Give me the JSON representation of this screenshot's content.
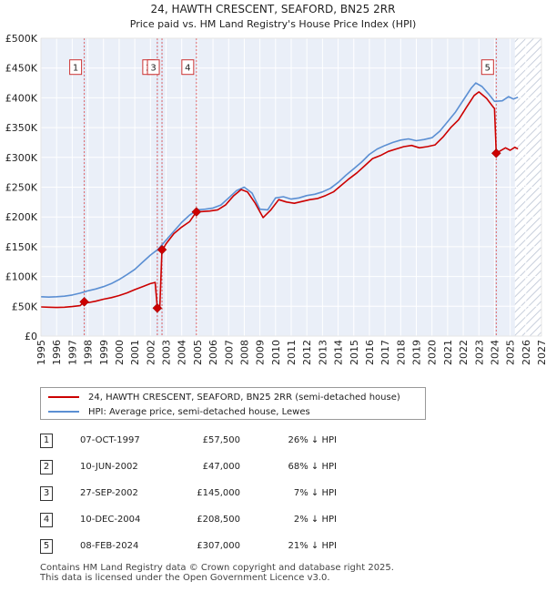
{
  "chart_data": {
    "type": "line",
    "title": "24, HAWTH CRESCENT, SEAFORD, BN25 2RR",
    "subtitle": "Price paid vs. HM Land Registry's House Price Index (HPI)",
    "xlim": [
      1995,
      2027
    ],
    "ylim": [
      0,
      500000
    ],
    "x_ticks": [
      1995,
      1996,
      1997,
      1998,
      1999,
      2000,
      2001,
      2002,
      2003,
      2004,
      2005,
      2006,
      2007,
      2008,
      2009,
      2010,
      2011,
      2012,
      2013,
      2014,
      2015,
      2016,
      2017,
      2018,
      2019,
      2020,
      2021,
      2022,
      2023,
      2024,
      2025,
      2026,
      2027
    ],
    "y_ticks": [
      {
        "value": 0,
        "label": "£0"
      },
      {
        "value": 50000,
        "label": "£50K"
      },
      {
        "value": 100000,
        "label": "£100K"
      },
      {
        "value": 150000,
        "label": "£150K"
      },
      {
        "value": 200000,
        "label": "£200K"
      },
      {
        "value": 250000,
        "label": "£250K"
      },
      {
        "value": 300000,
        "label": "£300K"
      },
      {
        "value": 350000,
        "label": "£350K"
      },
      {
        "value": 400000,
        "label": "£400K"
      },
      {
        "value": 450000,
        "label": "£450K"
      },
      {
        "value": 500000,
        "label": "£500K"
      }
    ],
    "forecast_start": 2025.3,
    "series": [
      {
        "name": "24, HAWTH CRESCENT, SEAFORD, BN25 2RR (semi-detached house)",
        "color": "#cc0000",
        "points": [
          [
            1995.0,
            49000
          ],
          [
            1995.5,
            48500
          ],
          [
            1996.0,
            48000
          ],
          [
            1996.5,
            48500
          ],
          [
            1997.0,
            49500
          ],
          [
            1997.5,
            51000
          ],
          [
            1997.77,
            57500
          ],
          [
            1998.0,
            56000
          ],
          [
            1998.5,
            58500
          ],
          [
            1999.0,
            62000
          ],
          [
            1999.5,
            64500
          ],
          [
            2000.0,
            68000
          ],
          [
            2000.5,
            72500
          ],
          [
            2001.0,
            78000
          ],
          [
            2001.5,
            83000
          ],
          [
            2002.0,
            88000
          ],
          [
            2002.3,
            90000
          ],
          [
            2002.44,
            47000
          ],
          [
            2002.6,
            47500
          ],
          [
            2002.74,
            145000
          ],
          [
            2002.8,
            146000
          ],
          [
            2003.0,
            155000
          ],
          [
            2003.5,
            172000
          ],
          [
            2004.0,
            183000
          ],
          [
            2004.5,
            192000
          ],
          [
            2004.94,
            208500
          ],
          [
            2005.3,
            209000
          ],
          [
            2005.8,
            210000
          ],
          [
            2006.3,
            212000
          ],
          [
            2006.8,
            220000
          ],
          [
            2007.3,
            235000
          ],
          [
            2007.8,
            246000
          ],
          [
            2008.2,
            242000
          ],
          [
            2008.7,
            223000
          ],
          [
            2009.2,
            199000
          ],
          [
            2009.7,
            212000
          ],
          [
            2010.2,
            229000
          ],
          [
            2010.7,
            225000
          ],
          [
            2011.2,
            223000
          ],
          [
            2011.7,
            226000
          ],
          [
            2012.2,
            229000
          ],
          [
            2012.7,
            231000
          ],
          [
            2013.2,
            236000
          ],
          [
            2013.7,
            242000
          ],
          [
            2014.2,
            253000
          ],
          [
            2014.7,
            264000
          ],
          [
            2015.2,
            274000
          ],
          [
            2015.7,
            286000
          ],
          [
            2016.2,
            298000
          ],
          [
            2016.7,
            303000
          ],
          [
            2017.2,
            310000
          ],
          [
            2017.7,
            314000
          ],
          [
            2018.2,
            318000
          ],
          [
            2018.7,
            320000
          ],
          [
            2019.2,
            316000
          ],
          [
            2019.7,
            318000
          ],
          [
            2020.2,
            321000
          ],
          [
            2020.7,
            334000
          ],
          [
            2021.2,
            350000
          ],
          [
            2021.7,
            363000
          ],
          [
            2022.2,
            384000
          ],
          [
            2022.7,
            404000
          ],
          [
            2023.0,
            410000
          ],
          [
            2023.5,
            399000
          ],
          [
            2023.9,
            385000
          ],
          [
            2024.0,
            382000
          ],
          [
            2024.11,
            307000
          ],
          [
            2024.3,
            310000
          ],
          [
            2024.7,
            316000
          ],
          [
            2025.0,
            312000
          ],
          [
            2025.3,
            317000
          ],
          [
            2025.5,
            314000
          ]
        ]
      },
      {
        "name": "HPI: Average price, semi-detached house, Lewes",
        "color": "#5b8fd3",
        "points": [
          [
            1995.0,
            66000
          ],
          [
            1995.5,
            65500
          ],
          [
            1996.0,
            66000
          ],
          [
            1996.5,
            67000
          ],
          [
            1997.0,
            69000
          ],
          [
            1997.5,
            72000
          ],
          [
            1998.0,
            76000
          ],
          [
            1998.5,
            79000
          ],
          [
            1999.0,
            83000
          ],
          [
            1999.5,
            88000
          ],
          [
            2000.0,
            95000
          ],
          [
            2000.5,
            103000
          ],
          [
            2001.0,
            112000
          ],
          [
            2001.5,
            124000
          ],
          [
            2002.0,
            136000
          ],
          [
            2002.5,
            146000
          ],
          [
            2003.0,
            161000
          ],
          [
            2003.5,
            176000
          ],
          [
            2004.0,
            191000
          ],
          [
            2004.5,
            203000
          ],
          [
            2005.0,
            212000
          ],
          [
            2005.5,
            213000
          ],
          [
            2006.0,
            215000
          ],
          [
            2006.5,
            220000
          ],
          [
            2007.0,
            232000
          ],
          [
            2007.5,
            244000
          ],
          [
            2008.0,
            250000
          ],
          [
            2008.5,
            240000
          ],
          [
            2009.0,
            213000
          ],
          [
            2009.5,
            212000
          ],
          [
            2010.0,
            232000
          ],
          [
            2010.5,
            234000
          ],
          [
            2011.0,
            230000
          ],
          [
            2011.5,
            232000
          ],
          [
            2012.0,
            236000
          ],
          [
            2012.5,
            238000
          ],
          [
            2013.0,
            242000
          ],
          [
            2013.5,
            248000
          ],
          [
            2014.0,
            258000
          ],
          [
            2014.5,
            270000
          ],
          [
            2015.0,
            281000
          ],
          [
            2015.5,
            292000
          ],
          [
            2016.0,
            305000
          ],
          [
            2016.5,
            314000
          ],
          [
            2017.0,
            320000
          ],
          [
            2017.5,
            325000
          ],
          [
            2018.0,
            329000
          ],
          [
            2018.5,
            331000
          ],
          [
            2019.0,
            328000
          ],
          [
            2019.5,
            330000
          ],
          [
            2020.0,
            333000
          ],
          [
            2020.5,
            344000
          ],
          [
            2021.0,
            360000
          ],
          [
            2021.5,
            376000
          ],
          [
            2022.0,
            396000
          ],
          [
            2022.5,
            416000
          ],
          [
            2022.8,
            425000
          ],
          [
            2023.2,
            419000
          ],
          [
            2023.6,
            407000
          ],
          [
            2024.0,
            394000
          ],
          [
            2024.5,
            395000
          ],
          [
            2024.9,
            402000
          ],
          [
            2025.2,
            398000
          ],
          [
            2025.5,
            401000
          ]
        ]
      }
    ],
    "sales": [
      {
        "id": "1",
        "x": 1997.77,
        "price": 57500
      },
      {
        "id": "2",
        "x": 2002.44,
        "price": 47000
      },
      {
        "id": "3",
        "x": 2002.74,
        "price": 145000
      },
      {
        "id": "4",
        "x": 2004.94,
        "price": 208500
      },
      {
        "id": "5",
        "x": 2024.11,
        "price": 307000
      }
    ],
    "markers": [
      {
        "id": "1",
        "x": 1997.77,
        "label_y": 450000
      },
      {
        "id": "2",
        "x": 2002.44,
        "label_y": 450000
      },
      {
        "id": "3",
        "x": 2002.74,
        "label_y": 450000
      },
      {
        "id": "4",
        "x": 2004.94,
        "label_y": 450000
      },
      {
        "id": "5",
        "x": 2024.11,
        "label_y": 450000
      }
    ]
  },
  "legend": {
    "property_label": "24, HAWTH CRESCENT, SEAFORD, BN25 2RR (semi-detached house)",
    "hpi_label": "HPI: Average price, semi-detached house, Lewes"
  },
  "table": [
    {
      "num": "1",
      "date": "07-OCT-1997",
      "price": "£57,500",
      "hpi": "26% ↓ HPI"
    },
    {
      "num": "2",
      "date": "10-JUN-2002",
      "price": "£47,000",
      "hpi": "68% ↓ HPI"
    },
    {
      "num": "3",
      "date": "27-SEP-2002",
      "price": "£145,000",
      "hpi": "7% ↓ HPI"
    },
    {
      "num": "4",
      "date": "10-DEC-2004",
      "price": "£208,500",
      "hpi": "2% ↓ HPI"
    },
    {
      "num": "5",
      "date": "08-FEB-2024",
      "price": "£307,000",
      "hpi": "21% ↓ HPI"
    }
  ],
  "footer": {
    "line1": "Contains HM Land Registry data © Crown copyright and database right 2025.",
    "line2": "This data is licensed under the Open Government Licence v3.0."
  },
  "colors": {
    "property": "#cc0000",
    "hpi": "#5b8fd3",
    "band": "#dde6f6",
    "grid": "#ffffff",
    "plot_bg": "#eaeff8",
    "marker_line": "#e06666"
  }
}
